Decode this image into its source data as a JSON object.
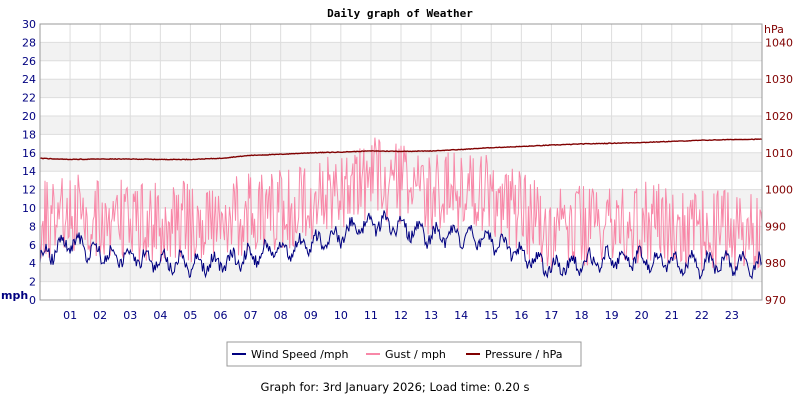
{
  "chart_data": {
    "type": "line",
    "title": "Daily graph of Weather",
    "left_axis": {
      "label": "mph",
      "range": [
        0,
        30
      ],
      "ticks": [
        0,
        2,
        4,
        6,
        8,
        10,
        12,
        14,
        16,
        18,
        20,
        22,
        24,
        26,
        28,
        30
      ]
    },
    "right_axis": {
      "label": "hPa",
      "range": [
        970,
        1045
      ],
      "ticks": [
        970,
        980,
        990,
        1000,
        1010,
        1020,
        1030,
        1040
      ]
    },
    "x_ticks": [
      "01",
      "02",
      "03",
      "04",
      "05",
      "06",
      "07",
      "08",
      "09",
      "10",
      "11",
      "12",
      "13",
      "14",
      "15",
      "16",
      "17",
      "18",
      "19",
      "20",
      "21",
      "22",
      "23"
    ],
    "x_range_hours": [
      0,
      24
    ],
    "grid": true,
    "legend_position": "bottom",
    "colors": {
      "wind": "#000080",
      "gust": "#f888a8",
      "pressure": "#800000"
    },
    "series": [
      {
        "name": "Wind Speed /mph",
        "axis": "left",
        "x": [
          0,
          1,
          2,
          3,
          4,
          5,
          6,
          7,
          8,
          9,
          10,
          11,
          12,
          13,
          14,
          15,
          16,
          17,
          18,
          19,
          20,
          21,
          22,
          23,
          24
        ],
        "values": [
          4.5,
          6.5,
          5.0,
          4.8,
          4.2,
          4.0,
          4.0,
          4.8,
          5.5,
          6.0,
          7.0,
          8.5,
          8.0,
          7.0,
          7.0,
          6.5,
          5.0,
          3.5,
          4.0,
          4.5,
          4.5,
          4.0,
          3.8,
          4.0,
          3.8
        ]
      },
      {
        "name": "Gust / mph",
        "axis": "left",
        "x": [
          0,
          1,
          2,
          3,
          4,
          5,
          6,
          7,
          8,
          9,
          10,
          11,
          12,
          13,
          14,
          15,
          16,
          17,
          18,
          19,
          20,
          21,
          22,
          23,
          24
        ],
        "values": [
          8.0,
          9.5,
          8.5,
          8.0,
          8.0,
          8.0,
          8.5,
          9.0,
          9.5,
          10.0,
          11.5,
          13.0,
          12.0,
          11.0,
          11.5,
          11.0,
          9.0,
          7.0,
          7.5,
          7.5,
          8.0,
          7.5,
          7.0,
          7.0,
          6.5
        ]
      },
      {
        "name": "Pressure / hPa",
        "axis": "right",
        "x": [
          0,
          1,
          2,
          3,
          4,
          5,
          6,
          7,
          8,
          9,
          10,
          11,
          12,
          13,
          14,
          15,
          16,
          17,
          18,
          19,
          20,
          21,
          22,
          23,
          24
        ],
        "values": [
          1008.5,
          1008.2,
          1008.3,
          1008.3,
          1008.2,
          1008.2,
          1008.5,
          1009.3,
          1009.6,
          1010.0,
          1010.2,
          1010.5,
          1010.4,
          1010.5,
          1010.9,
          1011.4,
          1011.7,
          1012.1,
          1012.4,
          1012.6,
          1012.8,
          1013.1,
          1013.4,
          1013.6,
          1013.7
        ]
      }
    ]
  },
  "footer": "Graph for: 3rd January 2026; Load time: 0.20 s"
}
